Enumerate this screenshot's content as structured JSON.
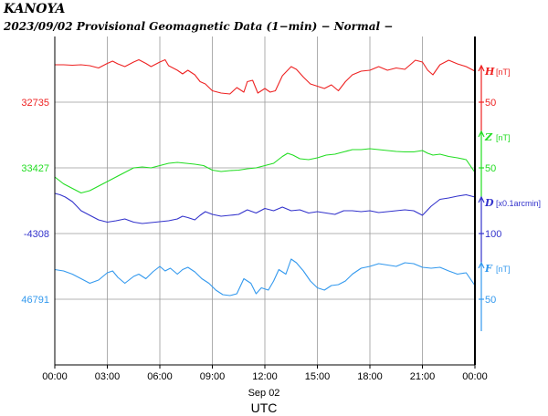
{
  "header": {
    "station": "KANOYA",
    "subtitle": "2023/09/02  Provisional Geomagnetic Data (1−min)  − Normal −"
  },
  "chart_data": {
    "type": "line",
    "xlabel": "UTC",
    "date_label": "Sep 02",
    "x_ticks": [
      "00:00",
      "03:00",
      "06:00",
      "09:00",
      "12:00",
      "15:00",
      "18:00",
      "21:00",
      "00:00"
    ],
    "x_range_hours": [
      0,
      24
    ],
    "grid": true,
    "series": [
      {
        "name": "H",
        "unit": "[nT]",
        "color": "#ee2222",
        "baseline_label": "32735",
        "scale_label": "50",
        "x": [
          0,
          0.5,
          1,
          1.5,
          2,
          2.5,
          3,
          3.3,
          3.6,
          4,
          4.5,
          4.8,
          5.2,
          5.5,
          6,
          6.3,
          6.5,
          7,
          7.3,
          7.6,
          8,
          8.3,
          8.6,
          9,
          9.5,
          10,
          10.4,
          10.8,
          11,
          11.3,
          11.6,
          12,
          12.3,
          12.6,
          13,
          13.5,
          13.8,
          14.2,
          14.6,
          15,
          15.4,
          15.8,
          16.2,
          16.6,
          17,
          17.5,
          18,
          18.5,
          19,
          19.5,
          20,
          20.3,
          20.6,
          21,
          21.3,
          21.6,
          22,
          22.5,
          23,
          23.5,
          24
        ],
        "y": [
          82,
          82,
          81,
          82,
          80,
          75,
          85,
          90,
          84,
          78,
          88,
          93,
          85,
          78,
          88,
          93,
          80,
          70,
          62,
          70,
          60,
          45,
          40,
          25,
          20,
          18,
          32,
          22,
          45,
          48,
          20,
          30,
          22,
          25,
          58,
          78,
          72,
          55,
          40,
          35,
          30,
          38,
          25,
          45,
          60,
          68,
          70,
          78,
          70,
          75,
          72,
          82,
          92,
          88,
          70,
          60,
          82,
          92,
          84,
          78,
          68
        ]
      },
      {
        "name": "Z",
        "unit": "[nT]",
        "color": "#22dd22",
        "baseline_label": "33427",
        "scale_label": "50",
        "x": [
          0,
          0.5,
          1,
          1.5,
          2,
          2.5,
          3,
          3.5,
          4,
          4.5,
          5,
          5.5,
          6,
          6.5,
          7,
          7.5,
          8,
          8.5,
          9,
          9.5,
          10,
          10.5,
          11,
          11.5,
          12,
          12.5,
          13,
          13.3,
          13.6,
          14,
          14.5,
          15,
          15.5,
          16,
          16.5,
          17,
          17.5,
          18,
          18.5,
          19,
          19.5,
          20,
          20.5,
          21,
          21.3,
          21.6,
          22,
          22.5,
          23,
          23.5,
          24
        ],
        "y": [
          -20,
          -35,
          -45,
          -55,
          -50,
          -40,
          -30,
          -20,
          -10,
          0,
          2,
          0,
          5,
          10,
          12,
          10,
          8,
          5,
          -5,
          -8,
          -6,
          -5,
          -2,
          0,
          5,
          10,
          25,
          32,
          28,
          20,
          18,
          22,
          28,
          30,
          35,
          40,
          40,
          42,
          40,
          38,
          36,
          35,
          35,
          38,
          32,
          28,
          30,
          25,
          22,
          18,
          -10
        ]
      },
      {
        "name": "D",
        "unit": "[x0.1arcmin]",
        "color": "#3333cc",
        "baseline_label": "-4308",
        "scale_label": "100",
        "x": [
          0,
          0.3,
          0.6,
          1,
          1.5,
          2,
          2.5,
          3,
          3.5,
          4,
          4.5,
          5,
          5.5,
          6,
          6.5,
          7,
          7.3,
          7.6,
          8,
          8.3,
          8.6,
          9,
          9.5,
          10,
          10.5,
          11,
          11.5,
          12,
          12.5,
          13,
          13.5,
          14,
          14.5,
          15,
          15.5,
          16,
          16.5,
          17,
          17.5,
          18,
          18.5,
          19,
          19.5,
          20,
          20.5,
          21,
          21.5,
          22,
          22.5,
          23,
          23.5,
          24
        ],
        "y": [
          88,
          85,
          80,
          70,
          50,
          40,
          30,
          25,
          28,
          32,
          25,
          22,
          24,
          26,
          28,
          32,
          38,
          35,
          30,
          40,
          48,
          42,
          38,
          40,
          42,
          52,
          45,
          55,
          50,
          58,
          50,
          52,
          45,
          48,
          45,
          42,
          50,
          50,
          48,
          50,
          46,
          48,
          50,
          52,
          50,
          40,
          60,
          75,
          78,
          82,
          85,
          80
        ]
      },
      {
        "name": "F",
        "unit": "[nT]",
        "color": "#3399ee",
        "baseline_label": "46791",
        "scale_label": "50",
        "x": [
          0,
          0.5,
          1,
          1.5,
          2,
          2.5,
          3,
          3.3,
          3.6,
          4,
          4.5,
          4.8,
          5.2,
          5.6,
          6,
          6.3,
          6.6,
          7,
          7.3,
          7.6,
          8,
          8.4,
          8.8,
          9.2,
          9.6,
          10,
          10.4,
          10.8,
          11.2,
          11.5,
          11.8,
          12.2,
          12.5,
          12.8,
          13.2,
          13.5,
          13.8,
          14.2,
          14.6,
          15,
          15.4,
          15.8,
          16.2,
          16.6,
          17,
          17.5,
          18,
          18.5,
          19,
          19.5,
          20,
          20.5,
          21,
          21.5,
          22,
          22.5,
          23,
          23.5,
          24
        ],
        "y": [
          65,
          62,
          55,
          45,
          35,
          42,
          58,
          62,
          48,
          35,
          50,
          55,
          45,
          60,
          72,
          62,
          68,
          55,
          65,
          70,
          60,
          45,
          35,
          20,
          10,
          8,
          12,
          45,
          35,
          12,
          25,
          20,
          40,
          65,
          55,
          88,
          80,
          62,
          40,
          25,
          20,
          30,
          32,
          40,
          55,
          68,
          72,
          78,
          75,
          72,
          80,
          78,
          70,
          68,
          70,
          62,
          55,
          58,
          30
        ]
      }
    ]
  }
}
